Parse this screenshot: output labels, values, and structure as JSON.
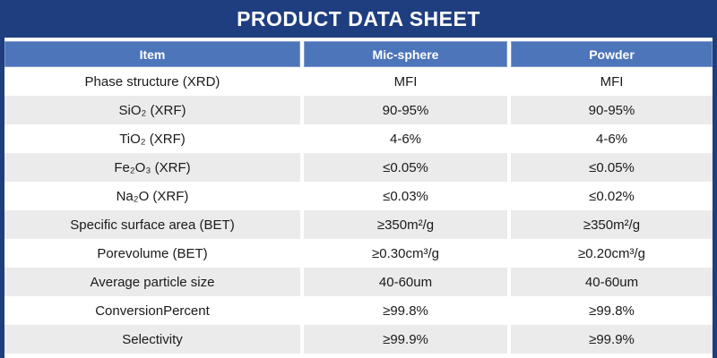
{
  "banner": {
    "title": "PRODUCT DATA SHEET"
  },
  "colors": {
    "banner_bg": "#1e3e80",
    "header_bg": "#4d75ba",
    "row_alt_bg": "#ebebeb",
    "header_text": "#ffffff",
    "body_text": "#1a1a1a"
  },
  "table": {
    "headers": [
      "Item",
      "Mic-sphere",
      "Powder"
    ],
    "rows": [
      {
        "item": "Phase structure (XRD)",
        "mic_sphere": "MFI",
        "powder": "MFI"
      },
      {
        "item": "SiO₂ (XRF)",
        "mic_sphere": "90-95%",
        "powder": "90-95%"
      },
      {
        "item": "TiO₂ (XRF)",
        "mic_sphere": "4-6%",
        "powder": "4-6%"
      },
      {
        "item": "Fe₂O₃ (XRF)",
        "mic_sphere": "≤0.05%",
        "powder": "≤0.05%"
      },
      {
        "item": "Na₂O (XRF)",
        "mic_sphere": "≤0.03%",
        "powder": "≤0.02%"
      },
      {
        "item": "Specific surface area (BET)",
        "mic_sphere": "≥350m²/g",
        "powder": "≥350m²/g"
      },
      {
        "item": "Porevolume (BET)",
        "mic_sphere": "≥0.30cm³/g",
        "powder": "≥0.20cm³/g"
      },
      {
        "item": "Average particle size",
        "mic_sphere": "40-60um",
        "powder": "40-60um"
      },
      {
        "item": "ConversionPercent",
        "mic_sphere": "≥99.8%",
        "powder": "≥99.8%"
      },
      {
        "item": "Selectivity",
        "mic_sphere": "≥99.9%",
        "powder": "≥99.9%"
      }
    ]
  }
}
